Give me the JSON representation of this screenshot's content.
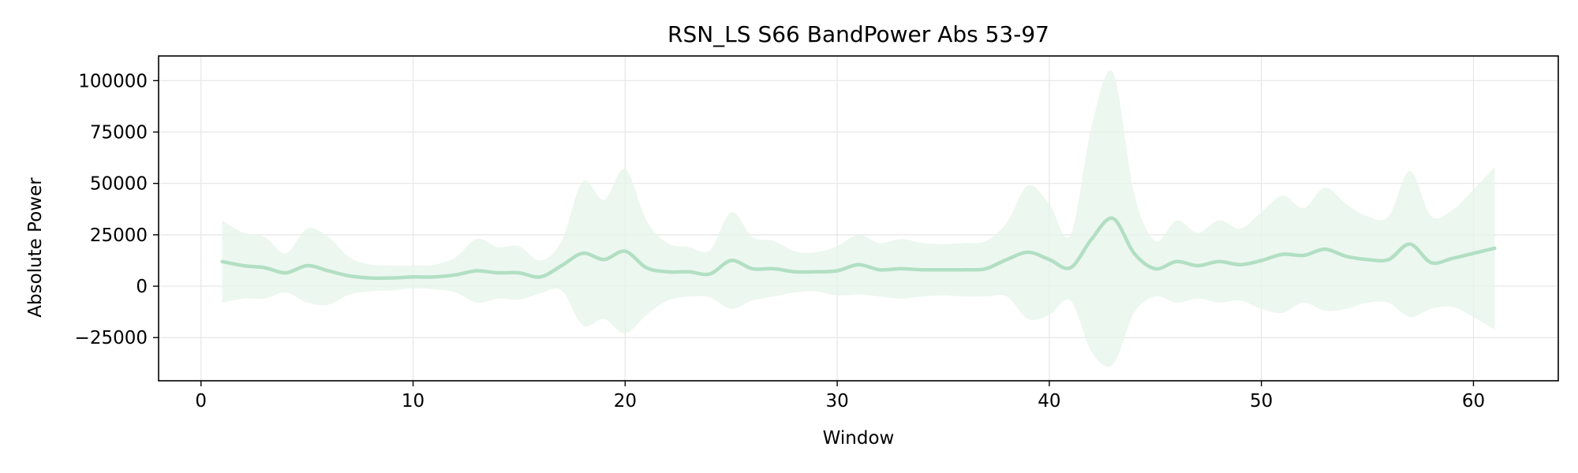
{
  "chart_data": {
    "type": "line",
    "title": "RSN_LS S66 BandPower Abs 53-97",
    "xlabel": "Window",
    "ylabel": "Absolute Power",
    "xlim": [
      -2,
      64
    ],
    "ylim": [
      -46000,
      112000
    ],
    "xticks": [
      0,
      10,
      20,
      30,
      40,
      50,
      60
    ],
    "yticks": [
      -25000,
      0,
      25000,
      50000,
      75000,
      100000
    ],
    "ytick_labels": [
      "−25000",
      "0",
      "25000",
      "50000",
      "75000",
      "100000"
    ],
    "grid": true,
    "colors": {
      "line": "#b2dfc3",
      "band": "#e6f4ea",
      "grid": "#e6e6e6"
    },
    "series": [
      {
        "x": [
          1,
          2,
          3,
          4,
          5,
          6,
          7,
          8,
          9,
          10,
          11,
          12,
          13,
          14,
          15,
          16,
          17,
          18,
          19,
          20,
          21,
          22,
          23,
          24,
          25,
          26,
          27,
          28,
          29,
          30,
          31,
          32,
          33,
          34,
          35,
          36,
          37,
          38,
          39,
          40,
          41,
          42,
          43,
          44,
          45,
          46,
          47,
          48,
          49,
          50,
          51,
          52,
          53,
          54,
          55,
          56,
          57,
          58,
          59,
          60,
          61
        ],
        "mean": [
          12000,
          10000,
          9000,
          6500,
          10000,
          7500,
          5000,
          4000,
          4000,
          4500,
          4500,
          5500,
          7500,
          6500,
          6500,
          4500,
          10000,
          16000,
          13000,
          17000,
          9000,
          7000,
          7000,
          6000,
          12500,
          8500,
          8500,
          7000,
          7000,
          7500,
          10500,
          8000,
          8500,
          8000,
          8000,
          8000,
          8500,
          13000,
          16500,
          13000,
          9000,
          23000,
          33000,
          16000,
          8500,
          12000,
          10000,
          12000,
          10500,
          12500,
          15500,
          15000,
          18000,
          14500,
          13000,
          13000,
          20500,
          11500,
          13500,
          16000,
          18500
        ],
        "upper": [
          32000,
          26000,
          24000,
          16000,
          28000,
          24000,
          14000,
          10500,
          10000,
          10000,
          10500,
          14000,
          23000,
          19000,
          19500,
          12500,
          22000,
          51000,
          42000,
          57000,
          32000,
          21000,
          19000,
          17500,
          36000,
          24000,
          22000,
          17000,
          16500,
          19500,
          25000,
          21000,
          23000,
          21000,
          20500,
          21000,
          22000,
          31000,
          49000,
          40000,
          25000,
          78000,
          104000,
          45000,
          22000,
          32000,
          26000,
          32000,
          28000,
          36000,
          44000,
          38000,
          48000,
          40000,
          34000,
          34000,
          56000,
          34000,
          37000,
          47000,
          58000
        ],
        "lower": [
          -8000,
          -6000,
          -6000,
          -3000,
          -8000,
          -9000,
          -4000,
          -2500,
          -2000,
          -1000,
          -1500,
          -3000,
          -8000,
          -6000,
          -6500,
          -3500,
          -2000,
          -19000,
          -16000,
          -23000,
          -14000,
          -7000,
          -5000,
          -5500,
          -11000,
          -7000,
          -5000,
          -3000,
          -2500,
          -4500,
          -4000,
          -5000,
          -6000,
          -5000,
          -4500,
          -5000,
          -5000,
          -5000,
          -16000,
          -14000,
          -7000,
          -32000,
          -38000,
          -13000,
          -5000,
          -8000,
          -6000,
          -8000,
          -7000,
          -11000,
          -13000,
          -8000,
          -12000,
          -11000,
          -8000,
          -8000,
          -15000,
          -11000,
          -10000,
          -15000,
          -21000
        ]
      }
    ]
  }
}
